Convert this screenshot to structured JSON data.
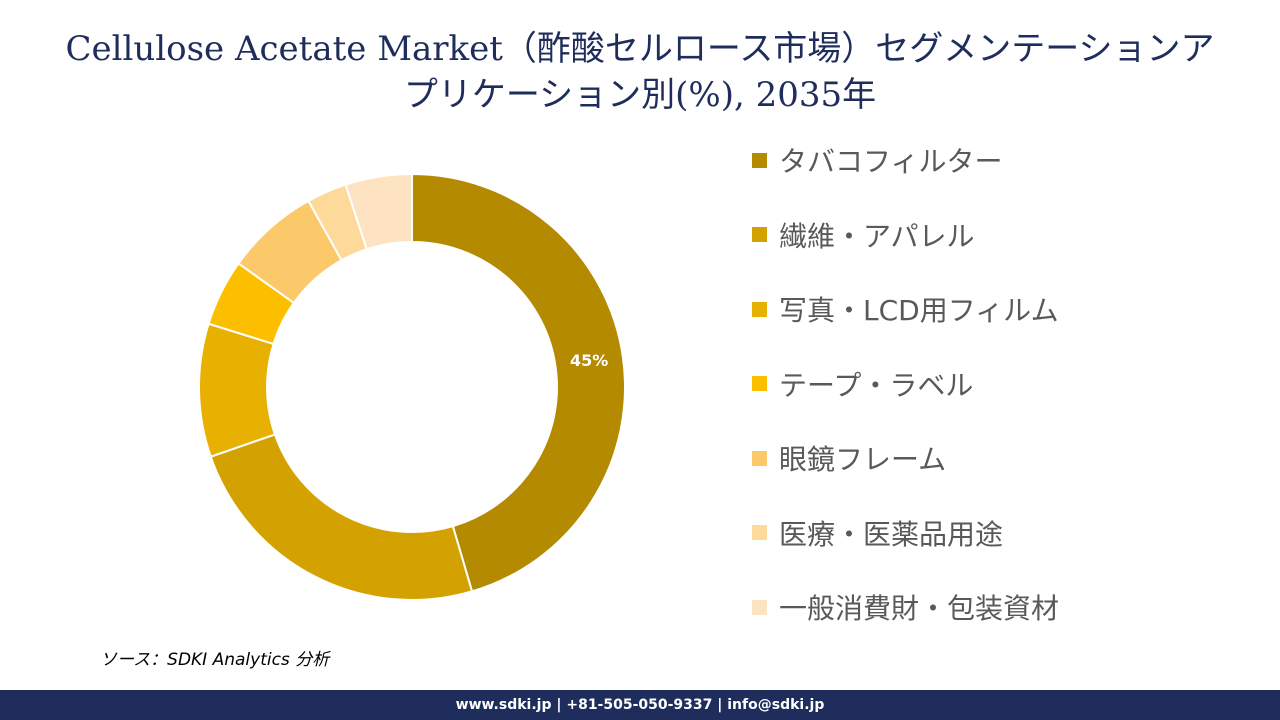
{
  "title": {
    "line1": "Cellulose Acetate Market（酢酸セルロース市場）セグメンテーションア",
    "line2": "プリケーション別(%), 2035年"
  },
  "chart_data": {
    "type": "pie",
    "donut": true,
    "categories": [
      "タバコフィルター",
      "繊維・アパレル",
      "写真・LCD用フィルム",
      "テープ・ラベル",
      "眼鏡フレーム",
      "医療・医薬品用途",
      "一般消費財・包装資材"
    ],
    "values": [
      45,
      24,
      10,
      5,
      7,
      3,
      5
    ],
    "data_labels": [
      "45%",
      "",
      "",
      "",
      "",
      "",
      ""
    ],
    "colors": [
      "#b38a00",
      "#d4a200",
      "#e8b000",
      "#fcbf00",
      "#fcc96a",
      "#fdd99a",
      "#fde3c2"
    ],
    "legend_position": "right"
  },
  "source": "ソース：SDKI Analytics 分析",
  "footer": "www.sdki.jp | +81-505-050-9337 | info@sdki.jp"
}
